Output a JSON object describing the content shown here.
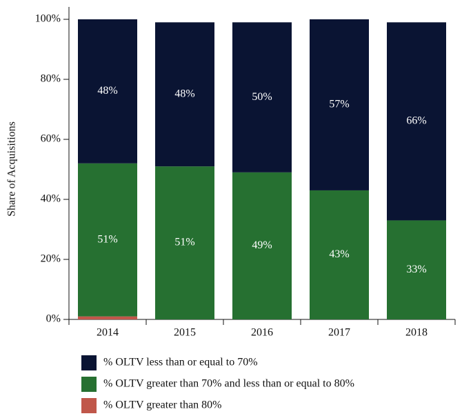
{
  "chart_data": {
    "type": "stacked_bar",
    "y_label": "Share of Acquisitions",
    "categories": [
      "2014",
      "2015",
      "2016",
      "2017",
      "2018"
    ],
    "series": [
      {
        "name": "% OLTV less than or equal to 70%",
        "color": "#0a1433",
        "values": [
          48,
          48,
          50,
          57,
          66
        ],
        "value_labels": [
          "48%",
          "48%",
          "50%",
          "57%",
          "66%"
        ]
      },
      {
        "name": "% OLTV greater than 70% and less than or equal to 80%",
        "color": "#267031",
        "values": [
          51,
          51,
          49,
          43,
          33
        ],
        "value_labels": [
          "51%",
          "51%",
          "49%",
          "43%",
          "33%"
        ]
      },
      {
        "name": "% OLTV greater than 80%",
        "color": "#c0574a",
        "values": [
          1,
          0,
          0,
          0,
          0
        ]
      }
    ],
    "ylim": [
      0,
      100
    ],
    "yticks": [
      {
        "value": 0,
        "label": "0%"
      },
      {
        "value": 20,
        "label": "20%"
      },
      {
        "value": 40,
        "label": "40%"
      },
      {
        "value": 60,
        "label": "60%"
      },
      {
        "value": 80,
        "label": "80%"
      },
      {
        "value": 100,
        "label": "100%"
      }
    ]
  }
}
